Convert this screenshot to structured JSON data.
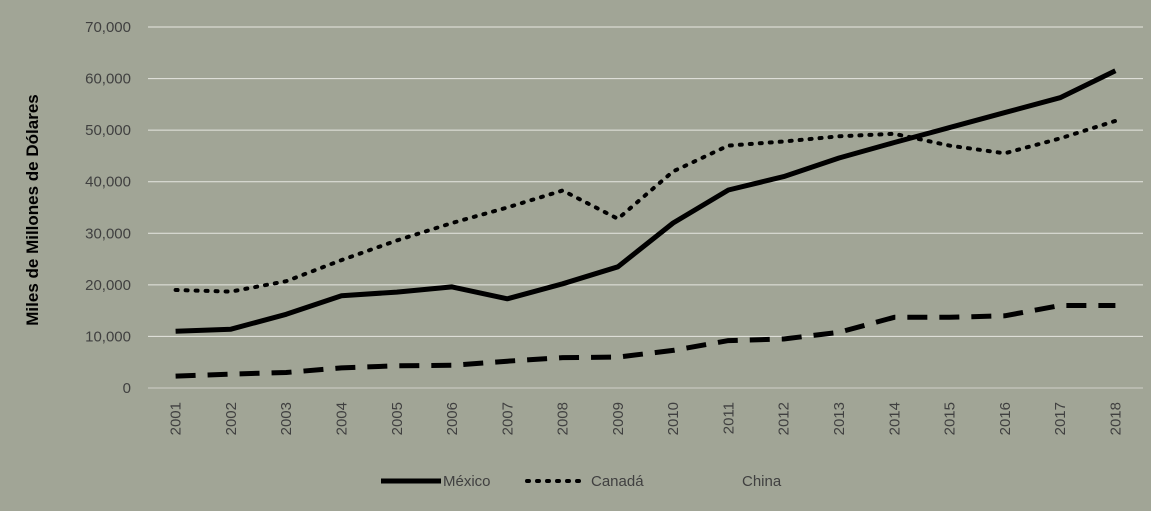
{
  "chart_data": {
    "type": "line",
    "title": "",
    "xlabel": "",
    "ylabel": "Miles de Millones de Dólares",
    "ylim": [
      0,
      70000
    ],
    "yticks": [
      0,
      10000,
      20000,
      30000,
      40000,
      50000,
      60000,
      70000
    ],
    "ytick_labels": [
      "0",
      "10,000",
      "20,000",
      "30,000",
      "40,000",
      "50,000",
      "60,000",
      "70,000"
    ],
    "grid": true,
    "legend_position": "bottom-center",
    "categories": [
      "2001",
      "2002",
      "2003",
      "2004",
      "2005",
      "2006",
      "2007",
      "2008",
      "2009",
      "2010",
      "2011",
      "2012",
      "2013",
      "2014",
      "2015",
      "2016",
      "2017",
      "2018"
    ],
    "series": [
      {
        "name": "México",
        "style": "solid",
        "color": "#000000",
        "values": [
          11000,
          11400,
          14300,
          17900,
          18600,
          19600,
          17300,
          20200,
          23500,
          32000,
          38400,
          41000,
          44600,
          47600,
          50500,
          53400,
          56300,
          61500
        ]
      },
      {
        "name": "Canadá",
        "style": "dotted",
        "color": "#000000",
        "values": [
          19000,
          18700,
          20700,
          24800,
          28600,
          32000,
          35000,
          38300,
          32800,
          42000,
          47000,
          47800,
          48800,
          49300,
          47000,
          45500,
          48400,
          51800
        ]
      },
      {
        "name": "China",
        "style": "dashed",
        "color": "#000000",
        "values": [
          2300,
          2700,
          3000,
          3900,
          4300,
          4400,
          5200,
          5900,
          6000,
          7300,
          9200,
          9500,
          10800,
          13700,
          13700,
          14000,
          16000,
          16000
        ]
      }
    ]
  }
}
